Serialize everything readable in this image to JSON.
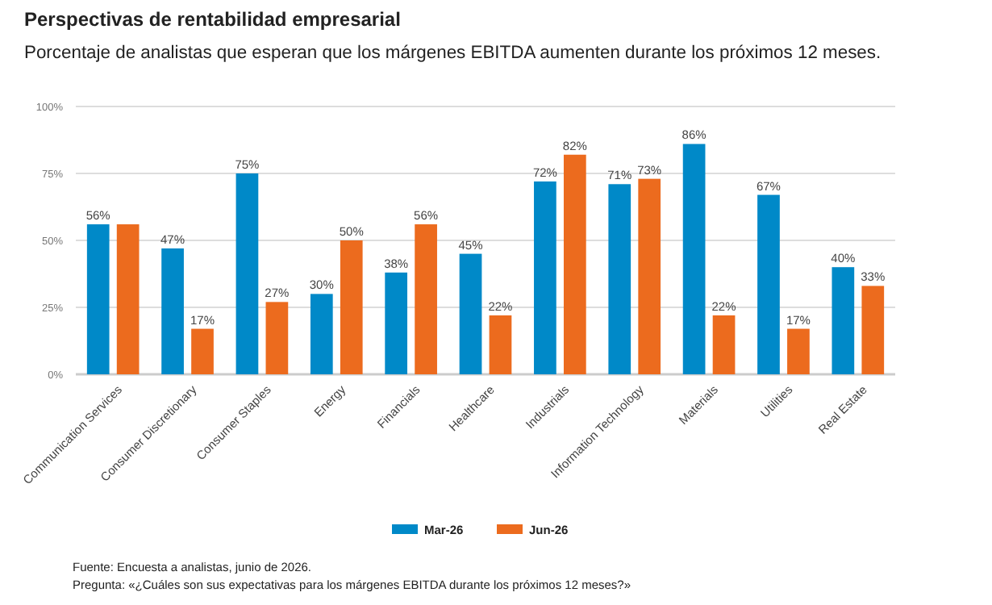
{
  "chart_data": {
    "type": "bar",
    "title": "Perspectivas de rentabilidad empresarial",
    "subtitle": "Porcentaje de analistas que esperan que los márgenes EBITDA aumenten durante los próximos 12 meses.",
    "categories": [
      "Communication Services",
      "Consumer Discretionary",
      "Consumer Staples",
      "Energy",
      "Financials",
      "Healthcare",
      "Industrials",
      "Information Technology",
      "Materials",
      "Utilities",
      "Real Estate"
    ],
    "series": [
      {
        "name": "Mar-26",
        "color": "#0089c8",
        "values": [
          56,
          47,
          75,
          30,
          38,
          45,
          72,
          71,
          86,
          67,
          40
        ],
        "value_labels": [
          "56%",
          "47%",
          "75%",
          "30%",
          "38%",
          "45%",
          "72%",
          "71%",
          "86%",
          "67%",
          "40%"
        ]
      },
      {
        "name": "Jun-26",
        "color": "#ec6b1e",
        "values": [
          56,
          17,
          27,
          50,
          56,
          22,
          82,
          73,
          22,
          17,
          33
        ],
        "value_labels": [
          null,
          "17%",
          "27%",
          "50%",
          "56%",
          "22%",
          "82%",
          "73%",
          "22%",
          "17%",
          "33%"
        ]
      }
    ],
    "ylim": [
      0,
      100
    ],
    "yticks": [
      {
        "value": 0,
        "label": "0%"
      },
      {
        "value": 25,
        "label": "25%"
      },
      {
        "value": 50,
        "label": "50%"
      },
      {
        "value": 75,
        "label": "75%"
      },
      {
        "value": 100,
        "label": "100%"
      }
    ],
    "grid": "y",
    "legend": "bottom",
    "annotations": [
      "Fuente: Encuesta a analistas, junio de 2026.",
      "Pregunta: «¿Cuáles son sus expectativas para los márgenes EBITDA durante los próximos 12 meses?»"
    ]
  }
}
